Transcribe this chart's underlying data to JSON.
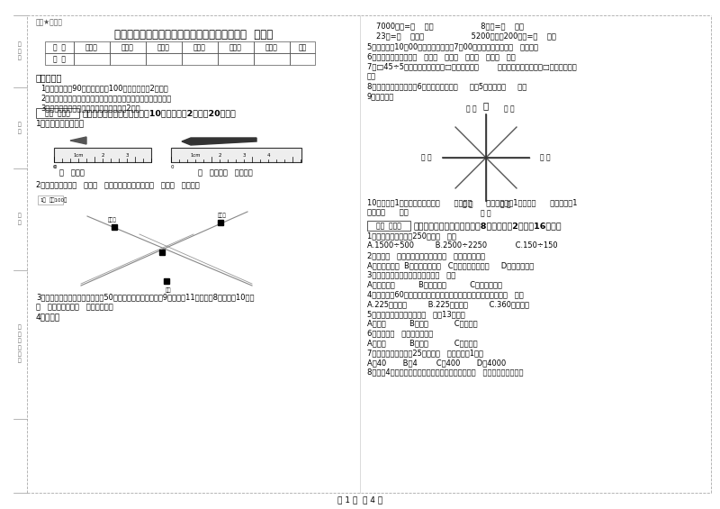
{
  "title": "江西省实验小学三年级数学下学期自我检测试卷  含答案",
  "watermark": "绝密★启用前",
  "table_headers": [
    "题  号",
    "填空题",
    "选择题",
    "判断题",
    "计算题",
    "综合题",
    "应用题",
    "总分"
  ],
  "table_row": [
    "得  分",
    "",
    "",
    "",
    "",
    "",
    "",
    ""
  ],
  "instructions_title": "考试须知：",
  "instructions": [
    "1、考试时间：90分钟，满分为100分（含卷面分2分）。",
    "2、请首先按要求在试卷的指定位置填写您的姓名、班级、学号。",
    "3、不要在试卷上乱写乱画，卷面不整洁扣2分。"
  ],
  "section1_header": "一、用心思考，正确填空（共10小题，每题2分，共20分）。",
  "section1_label": "得分  评卷人",
  "q1": "1、量出钉子的长度。",
  "q1_units": "（   ）毫米              （   ）厘米（   ）毫米。",
  "q2": "2、小红家在学校（   ）方（   ）米处；小明家在学校（   ）方（   ）米处。",
  "q3": "3、体育老师对第一小组同学进行50米跑测试，成绩如下小红9秒，小强11秒，小明8秒，小军10秒。",
  "q3b": "（   ）跑得最快，（   ）跑得最慢。",
  "q4": "4、估算。",
  "right_line1": "7000千克=（    ）吨                    8千克=（    ）克",
  "right_line2": "23吨=（    ）千克                    5200千克－200千克=（    ）吨",
  "q5": "5、小林晚上10：00睡觉，第二天早上7：00起床，他一共睡了（   ）小时。",
  "q6": "6、常用的长度单位有（   ）、（   ）、（   ）、（   ）、（   ）。",
  "q7a": "7、□45÷5，要使商是两位数，□里最大可填（        ）；要使商是三位数，□里最小应填（",
  "q7b": "）。",
  "q8": "8、把一根绳子平均分成6份，每份是它的（     ），5份是它的（     ）。",
  "q9": "9、填一填。",
  "compass_north": "北",
  "q10a": "10、分针走1小格，秒针正好走（      ），是（      ）秒，分针走1大格是（      ），时针走1",
  "q10b": "大格是（      ）。",
  "section2_label": "得分  评卷人",
  "section2_header": "二、反复比较，慎重选择（共8小题，每题2分，共16分）。",
  "rq1": "1、下面的结果刚好是250的是（   ）。",
  "rq1a": "A.1500÷500         B.2500÷2250            C.150÷150",
  "rq2": "2、明天（   ）会下雨，今天下午我（   ）游遍全世界。",
  "rq2a": "A、一定，可能  B、可能，不可能   C、不可能，不可能     D、可能，可能",
  "rq3": "3、下面现象中属于平移现象的是（   ）。",
  "rq3a": "A、开关抽屉          B、拧开瓶盖          C、转动的风车",
  "rq4": "4、把一根长60厘米的铁丝围成一个正方形，这个正方形的面积是（   ）。",
  "rq4a": "A.225平方分米         B.225平方厘米         C.360平方厘米",
  "rq5": "5、按农历计算，有的年份（   ）有13个月。",
  "rq5a": "A、一定          B、可能           C、不可能",
  "rq6": "6、四边形（   ）平行四边形。",
  "rq6a": "A、一定          B、可能           C、不可能",
  "rq7": "7、平均每个同学体重25千克，（   ）名同学重1吨。",
  "rq7a": "A、40       B、4        C、400       D、4000",
  "rq8": "8、下列4个图形中，每个小正方形都一样大，那么（   ）图形的周长最长。",
  "page_footer": "第 1 页  共 4 页",
  "bg_color": "#ffffff",
  "map_label_school": "学校",
  "map_label_xh": "小红家",
  "map_label_xm": "小明家",
  "map_north": "北",
  "map_scale": "1格\n代表\n100米"
}
